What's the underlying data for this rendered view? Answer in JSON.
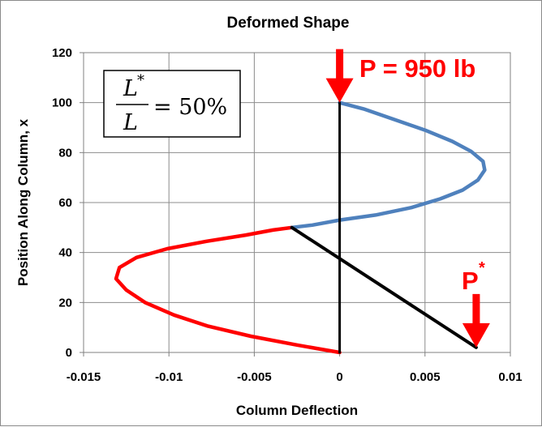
{
  "chart_data": {
    "type": "line",
    "title": "Deformed Shape",
    "xlabel": "Column Deflection",
    "ylabel": "Position Along Column, x",
    "xlim": [
      -0.015,
      0.01
    ],
    "ylim": [
      0,
      120
    ],
    "xticks": [
      "-0.015",
      "-0.01",
      "-0.005",
      "0",
      "0.005",
      "0.01"
    ],
    "yticks": [
      "0",
      "20",
      "40",
      "60",
      "80",
      "100",
      "120"
    ],
    "grid": true,
    "series": [
      {
        "color": "#ff0000",
        "points": [
          [
            0,
            0
          ],
          [
            -0.0025,
            3
          ],
          [
            -0.0052,
            6.5
          ],
          [
            -0.0077,
            10.5
          ],
          [
            -0.0097,
            15
          ],
          [
            -0.0114,
            20
          ],
          [
            -0.0125,
            25
          ],
          [
            -0.0131,
            29.5
          ],
          [
            -0.0129,
            34
          ],
          [
            -0.0119,
            38
          ],
          [
            -0.0101,
            41.5
          ],
          [
            -0.0078,
            44.5
          ],
          [
            -0.0055,
            47
          ],
          [
            -0.0039,
            49
          ],
          [
            -0.0028,
            50
          ]
        ]
      },
      {
        "color": "#4f81bd",
        "points": [
          [
            -0.0028,
            50
          ],
          [
            -0.0016,
            51
          ],
          [
            0,
            53
          ],
          [
            0.0021,
            55
          ],
          [
            0.0042,
            58
          ],
          [
            0.0059,
            61.5
          ],
          [
            0.0072,
            65
          ],
          [
            0.0081,
            69
          ],
          [
            0.0085,
            73
          ],
          [
            0.0084,
            76.5
          ],
          [
            0.0077,
            80.5
          ],
          [
            0.0066,
            84.5
          ],
          [
            0.005,
            89
          ],
          [
            0.0031,
            93.5
          ],
          [
            0.0014,
            97.5
          ],
          [
            0,
            100
          ]
        ]
      },
      {
        "color": "#000000",
        "points": [
          [
            0,
            0
          ],
          [
            0,
            100
          ]
        ]
      },
      {
        "color": "#000000",
        "points": [
          [
            -0.0028,
            50
          ],
          [
            0.008,
            2
          ]
        ]
      }
    ],
    "annotations": {
      "ratio_label": "= 50%",
      "ratio_numerator": "L",
      "ratio_denominator": "L",
      "ratio_star": "*",
      "load_top": "P = 950 lb",
      "load_top_point": [
        0,
        100
      ],
      "load_bottom": "P",
      "load_bottom_sup": "*",
      "load_bottom_point": [
        0.008,
        2
      ],
      "arrow_color": "#ff0000"
    }
  }
}
